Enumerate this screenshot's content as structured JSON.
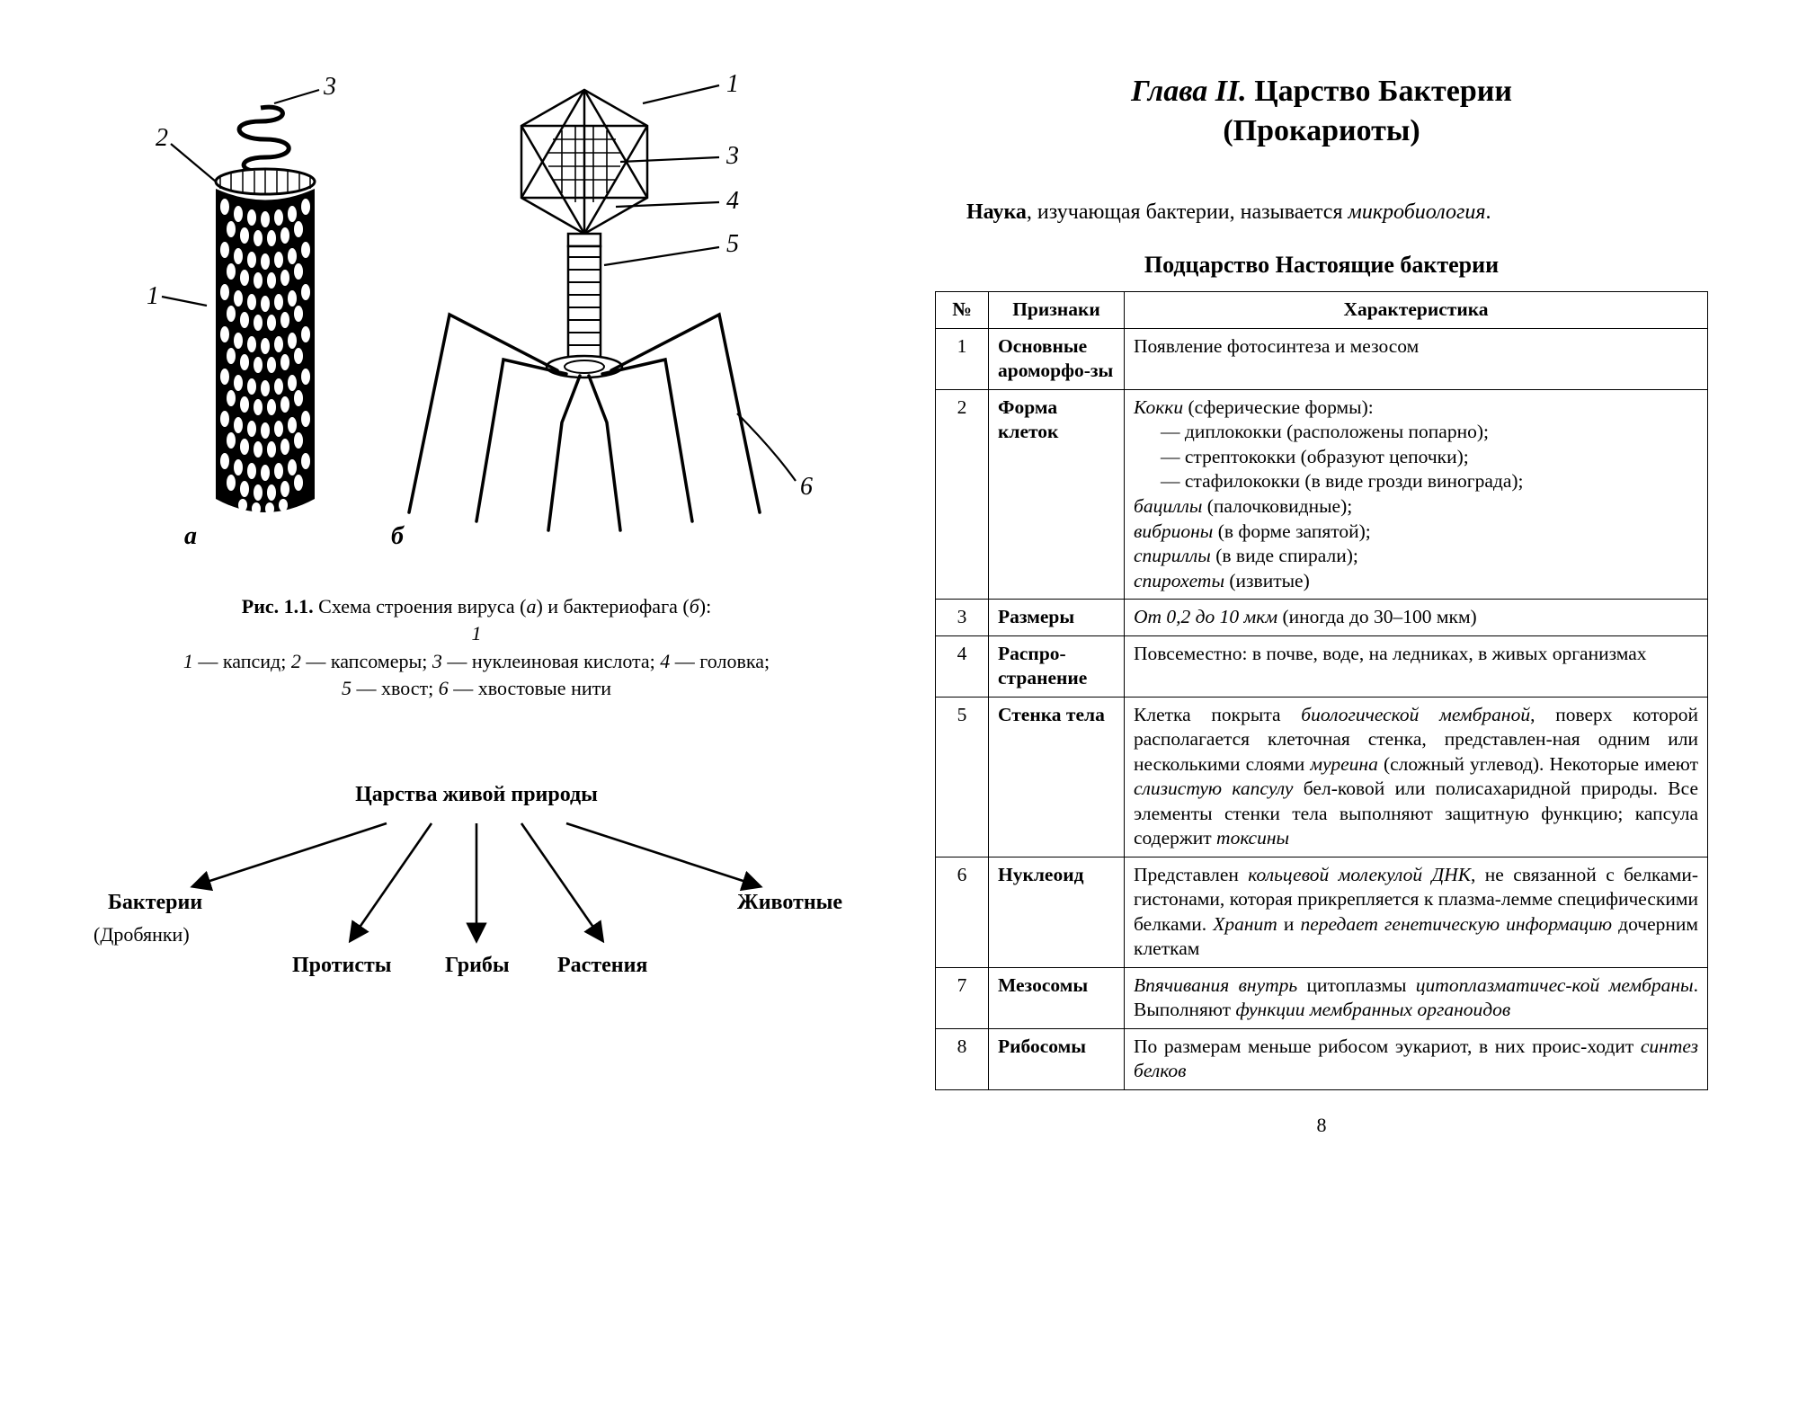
{
  "left": {
    "figure": {
      "labels": {
        "a": "а",
        "b": "б",
        "n1": "1",
        "n2": "2",
        "n3": "3",
        "n4": "4",
        "n5": "5",
        "n6": "6"
      },
      "caption_title": "Рис. 1.1.",
      "caption_rest": " Схема строения вируса (",
      "caption_a": "а",
      "caption_mid": ") и бактериофага (",
      "caption_b": "б",
      "caption_end": "):",
      "legend": "1 — капсид; 2 — капсомеры; 3 — нуклеиновая кислота; 4 — головка;\n5 — хвост; 6 — хвостовые нити"
    },
    "kingdoms": {
      "title": "Царства живой природы",
      "bacteria": "Бактерии",
      "bacteria_sub": "(Дробянки)",
      "protists": "Протисты",
      "fungi": "Грибы",
      "plants": "Растения",
      "animals": "Животные"
    }
  },
  "right": {
    "chapter_italic": "Глава II.",
    "chapter_rest": " Царство Бактерии",
    "chapter_line2": "(Прокариоты)",
    "intro_b": "Наука",
    "intro_mid": ", изучающая бактерии, называется ",
    "intro_i": "микробиология",
    "intro_end": ".",
    "subkingdom": "Подцарство Настоящие бактерии",
    "headers": {
      "num": "№",
      "feat": "Признаки",
      "char": "Характеристика"
    },
    "rows": [
      {
        "n": "1",
        "feat": "Основные ароморфо-зы",
        "char_html": "Появление фотосинтеза и мезосом"
      },
      {
        "n": "2",
        "feat": "Форма клеток",
        "char_html": "<span class='i'>Кокки</span> (сферические формы):<br><span class='indent'>— диплококки (расположены попарно);</span><span class='indent'>— стрептококки (образуют цепочки);</span><span class='indent'>— стафилококки (в виде грозди винограда);</span><span class='i'>бациллы</span> (палочковидные);<br><span class='i'>вибрионы</span> (в форме запятой);<br><span class='i'>спириллы</span> (в виде спирали);<br><span class='i'>спирохеты</span> (извитые)"
      },
      {
        "n": "3",
        "feat": "Размеры",
        "char_html": "<span class='i'>От 0,2 до 10 мкм</span> (иногда до 30–100 мкм)"
      },
      {
        "n": "4",
        "feat": "Распро-странение",
        "char_html": "Повсеместно: в почве, воде, на ледниках, в живых организмах"
      },
      {
        "n": "5",
        "feat": "Стенка тела",
        "char_html": "Клетка покрыта <span class='i'>биологической мембраной</span>, поверх которой располагается клеточная стенка, представлен-ная одним или несколькими слоями <span class='i'>муреина</span> (сложный углевод). Некоторые имеют <span class='i'>слизистую капсулу</span> бел-ковой или полисахаридной природы. Все элементы стенки тела выполняют защитную функцию; капсула содержит <span class='i'>токсины</span>"
      },
      {
        "n": "6",
        "feat": "Нуклеоид",
        "char_html": "Представлен <span class='i'>кольцевой молекулой ДНК</span>, не связанной с белками-гистонами, которая прикрепляется к плазма-лемме специфическими белками. <span class='i'>Хранит</span> и <span class='i'>передает генетическую информацию</span> дочерним клеткам"
      },
      {
        "n": "7",
        "feat": "Мезосомы",
        "char_html": "<span class='i'>Впячивания внутрь</span> цитоплазмы <span class='i'>цитоплазматичес-кой мембраны</span>. Выполняют <span class='i'>функции мембранных органоидов</span>"
      },
      {
        "n": "8",
        "feat": "Рибосомы",
        "char_html": "По размерам меньше рибосом эукариот, в них проис-ходит <span class='i'>синтез белков</span>"
      }
    ],
    "page": "8"
  }
}
